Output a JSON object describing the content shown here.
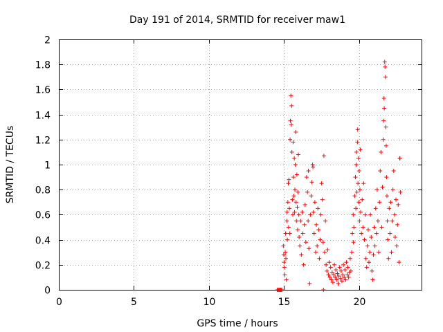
{
  "chart_data": {
    "type": "scatter",
    "title": "Day 191 of 2014, SRMTID for receiver maw1",
    "xlabel": "GPS time / hours",
    "ylabel": "SRMTID / TECUs",
    "xlim": [
      0,
      24.2
    ],
    "ylim": [
      0,
      2
    ],
    "xticks": [
      0,
      5,
      10,
      15,
      20
    ],
    "yticks": [
      0,
      0.2,
      0.4,
      0.6,
      0.8,
      1,
      1.2,
      1.4,
      1.6,
      1.8,
      2
    ],
    "xtick_labels": [
      "0",
      "5",
      "10",
      "15",
      "20"
    ],
    "ytick_labels": [
      "0",
      "0.2",
      "0.4",
      "0.6",
      "0.8",
      "1",
      "1.2",
      "1.4",
      "1.6",
      "1.8",
      "2"
    ],
    "grid": true,
    "marker": "+",
    "color": "#ff0000",
    "series": [
      {
        "name": "maw1",
        "points": [
          [
            14.55,
            0.0
          ],
          [
            14.6,
            0.0
          ],
          [
            14.65,
            0.0
          ],
          [
            14.7,
            0.0
          ],
          [
            14.75,
            0.0
          ],
          [
            14.8,
            0.0
          ],
          [
            14.85,
            0.0
          ],
          [
            14.95,
            0.35
          ],
          [
            14.98,
            0.28
          ],
          [
            15.0,
            0.22
          ],
          [
            15.02,
            0.18
          ],
          [
            15.05,
            0.12
          ],
          [
            15.08,
            0.3
          ],
          [
            15.1,
            0.45
          ],
          [
            15.12,
            0.25
          ],
          [
            15.15,
            0.08
          ],
          [
            15.18,
            0.55
          ],
          [
            15.2,
            0.62
          ],
          [
            15.22,
            0.4
          ],
          [
            15.25,
            0.7
          ],
          [
            15.28,
            0.85
          ],
          [
            15.3,
            0.5
          ],
          [
            15.32,
            0.88
          ],
          [
            15.35,
            0.65
          ],
          [
            15.38,
            0.45
          ],
          [
            15.4,
            1.2
          ],
          [
            15.42,
            1.35
          ],
          [
            15.45,
            1.55
          ],
          [
            15.48,
            1.32
          ],
          [
            15.5,
            1.47
          ],
          [
            15.52,
            1.1
          ],
          [
            15.55,
            0.72
          ],
          [
            15.58,
            0.6
          ],
          [
            15.6,
            1.18
          ],
          [
            15.62,
            0.9
          ],
          [
            15.65,
            0.75
          ],
          [
            15.68,
            1.05
          ],
          [
            15.7,
            0.62
          ],
          [
            15.72,
            0.8
          ],
          [
            15.75,
            1.0
          ],
          [
            15.78,
            1.26
          ],
          [
            15.8,
            0.7
          ],
          [
            15.82,
            0.55
          ],
          [
            15.85,
            0.92
          ],
          [
            15.88,
            0.66
          ],
          [
            15.9,
            0.48
          ],
          [
            15.92,
            0.78
          ],
          [
            15.95,
            1.08
          ],
          [
            15.98,
            0.6
          ],
          [
            16.0,
            0.42
          ],
          [
            16.05,
            0.35
          ],
          [
            16.1,
            0.55
          ],
          [
            16.15,
            0.28
          ],
          [
            16.2,
            0.62
          ],
          [
            16.25,
            0.45
          ],
          [
            16.3,
            0.2
          ],
          [
            16.35,
            0.52
          ],
          [
            16.4,
            0.68
          ],
          [
            16.45,
            0.38
          ],
          [
            16.5,
            0.9
          ],
          [
            16.55,
            0.78
          ],
          [
            16.6,
            0.55
          ],
          [
            16.62,
            0.95
          ],
          [
            16.65,
            0.33
          ],
          [
            16.7,
            0.05
          ],
          [
            16.75,
            0.6
          ],
          [
            16.8,
            0.75
          ],
          [
            16.85,
            0.86
          ],
          [
            16.9,
            1.0
          ],
          [
            16.92,
            0.98
          ],
          [
            16.95,
            0.62
          ],
          [
            17.0,
            0.45
          ],
          [
            17.05,
            0.7
          ],
          [
            17.1,
            0.3
          ],
          [
            17.15,
            0.52
          ],
          [
            17.2,
            0.35
          ],
          [
            17.25,
            0.65
          ],
          [
            17.3,
            0.48
          ],
          [
            17.35,
            0.25
          ],
          [
            17.4,
            0.4
          ],
          [
            17.45,
            0.6
          ],
          [
            17.5,
            0.85
          ],
          [
            17.55,
            0.72
          ],
          [
            17.6,
            0.38
          ],
          [
            17.62,
            0.0
          ],
          [
            17.65,
            1.07
          ],
          [
            17.7,
            0.3
          ],
          [
            17.75,
            0.55
          ],
          [
            17.8,
            0.2
          ],
          [
            17.85,
            0.15
          ],
          [
            17.9,
            0.32
          ],
          [
            17.95,
            0.12
          ],
          [
            18.0,
            0.22
          ],
          [
            18.05,
            0.1
          ],
          [
            18.1,
            0.18
          ],
          [
            18.15,
            0.08
          ],
          [
            18.2,
            0.14
          ],
          [
            18.25,
            0.06
          ],
          [
            18.3,
            0.12
          ],
          [
            18.35,
            0.2
          ],
          [
            18.4,
            0.1
          ],
          [
            18.45,
            0.16
          ],
          [
            18.5,
            0.08
          ],
          [
            18.55,
            0.13
          ],
          [
            18.6,
            0.05
          ],
          [
            18.65,
            0.11
          ],
          [
            18.7,
            0.18
          ],
          [
            18.75,
            0.09
          ],
          [
            18.8,
            0.15
          ],
          [
            18.85,
            0.07
          ],
          [
            18.9,
            0.12
          ],
          [
            18.95,
            0.2
          ],
          [
            19.0,
            0.1
          ],
          [
            19.05,
            0.16
          ],
          [
            19.1,
            0.08
          ],
          [
            19.15,
            0.22
          ],
          [
            19.2,
            0.12
          ],
          [
            19.25,
            0.18
          ],
          [
            19.3,
            0.1
          ],
          [
            19.35,
            0.14
          ],
          [
            19.4,
            0.25
          ],
          [
            19.45,
            0.15
          ],
          [
            19.5,
            0.3
          ],
          [
            19.55,
            0.45
          ],
          [
            19.6,
            0.6
          ],
          [
            19.62,
            0.38
          ],
          [
            19.65,
            0.5
          ],
          [
            19.7,
            0.75
          ],
          [
            19.75,
            0.9
          ],
          [
            19.78,
            0.65
          ],
          [
            19.8,
            1.0
          ],
          [
            19.82,
            1.1
          ],
          [
            19.85,
            0.78
          ],
          [
            19.88,
            1.18
          ],
          [
            19.9,
            1.28
          ],
          [
            19.92,
            0.85
          ],
          [
            19.95,
            1.05
          ],
          [
            19.98,
            0.7
          ],
          [
            20.0,
            0.95
          ],
          [
            20.02,
            0.55
          ],
          [
            20.05,
            0.8
          ],
          [
            20.08,
            1.12
          ],
          [
            20.1,
            0.62
          ],
          [
            20.15,
            0.45
          ],
          [
            20.2,
            0.72
          ],
          [
            20.25,
            0.5
          ],
          [
            20.3,
            0.85
          ],
          [
            20.35,
            0.4
          ],
          [
            20.4,
            0.6
          ],
          [
            20.45,
            0.25
          ],
          [
            20.5,
            0.18
          ],
          [
            20.55,
            0.35
          ],
          [
            20.6,
            0.48
          ],
          [
            20.65,
            0.22
          ],
          [
            20.7,
            0.3
          ],
          [
            20.75,
            0.6
          ],
          [
            20.8,
            0.42
          ],
          [
            20.85,
            0.15
          ],
          [
            20.9,
            0.08
          ],
          [
            20.95,
            0.28
          ],
          [
            21.0,
            0.5
          ],
          [
            21.05,
            0.35
          ],
          [
            21.1,
            0.65
          ],
          [
            21.15,
            0.45
          ],
          [
            21.2,
            0.8
          ],
          [
            21.25,
            0.55
          ],
          [
            21.3,
            0.3
          ],
          [
            21.35,
            0.7
          ],
          [
            21.4,
            0.95
          ],
          [
            21.45,
            1.1
          ],
          [
            21.5,
            0.5
          ],
          [
            21.55,
            0.82
          ],
          [
            21.6,
            1.2
          ],
          [
            21.62,
            1.35
          ],
          [
            21.65,
            1.53
          ],
          [
            21.67,
            1.45
          ],
          [
            21.7,
            1.82
          ],
          [
            21.72,
            1.78
          ],
          [
            21.75,
            1.7
          ],
          [
            21.78,
            1.3
          ],
          [
            21.8,
            1.15
          ],
          [
            21.82,
            0.9
          ],
          [
            21.85,
            0.75
          ],
          [
            21.88,
            0.55
          ],
          [
            21.9,
            0.4
          ],
          [
            21.95,
            0.25
          ],
          [
            22.0,
            0.65
          ],
          [
            22.05,
            0.45
          ],
          [
            22.1,
            0.7
          ],
          [
            22.15,
            0.3
          ],
          [
            22.2,
            0.55
          ],
          [
            22.25,
            0.8
          ],
          [
            22.3,
            0.95
          ],
          [
            22.35,
            0.6
          ],
          [
            22.4,
            0.42
          ],
          [
            22.45,
            0.72
          ],
          [
            22.5,
            0.35
          ],
          [
            22.55,
            0.52
          ],
          [
            22.6,
            0.68
          ],
          [
            22.65,
            0.22
          ],
          [
            22.7,
            1.05
          ],
          [
            22.72,
            1.05
          ],
          [
            22.75,
            0.78
          ]
        ]
      }
    ]
  }
}
